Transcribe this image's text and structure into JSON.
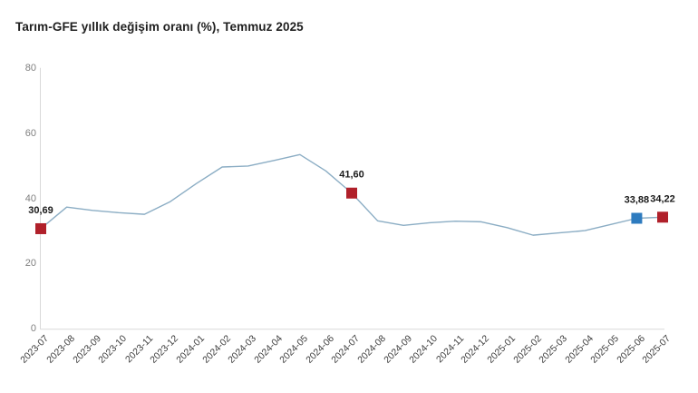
{
  "title": "Tarım-GFE yıllık değişim oranı (%), Temmuz 2025",
  "colors": {
    "line": "#8badc4",
    "marker_red": "#b0202a",
    "marker_blue": "#2e7bbf",
    "axis": "#d9d9d9",
    "y_tick_text": "#7f7f7f",
    "x_tick_text": "#3d3d3d",
    "data_label_text": "#1a1a1a",
    "title_text": "#1f1f1f",
    "background": "#ffffff"
  },
  "chart_data": {
    "type": "line",
    "title": "Tarım-GFE yıllık değişim oranı (%), Temmuz 2025",
    "categories": [
      "2023-07",
      "2023-08",
      "2023-09",
      "2023-10",
      "2023-11",
      "2023-12",
      "2024-01",
      "2024-02",
      "2024-03",
      "2024-04",
      "2024-05",
      "2024-06",
      "2024-07",
      "2024-08",
      "2024-09",
      "2024-10",
      "2024-11",
      "2024-12",
      "2025-01",
      "2025-02",
      "2025-03",
      "2025-04",
      "2025-05",
      "2025-06",
      "2025-07"
    ],
    "values": [
      30.69,
      37.3,
      36.3,
      35.6,
      35.1,
      39.0,
      44.5,
      49.6,
      49.9,
      51.6,
      53.4,
      48.4,
      41.6,
      33.1,
      31.7,
      32.5,
      33.0,
      32.8,
      31.0,
      28.7,
      29.4,
      30.1,
      32.0,
      33.88,
      34.22
    ],
    "xlabel": "",
    "ylabel": "",
    "ylim": [
      0,
      80
    ],
    "yticks": [
      0,
      20,
      40,
      60,
      80
    ],
    "grid": false,
    "legend": "none",
    "markers": [
      {
        "index": 0,
        "label": "30,69",
        "color": "red"
      },
      {
        "index": 12,
        "label": "41,60",
        "color": "red"
      },
      {
        "index": 23,
        "label": "33,88",
        "color": "blue"
      },
      {
        "index": 24,
        "label": "34,22",
        "color": "red"
      }
    ]
  }
}
